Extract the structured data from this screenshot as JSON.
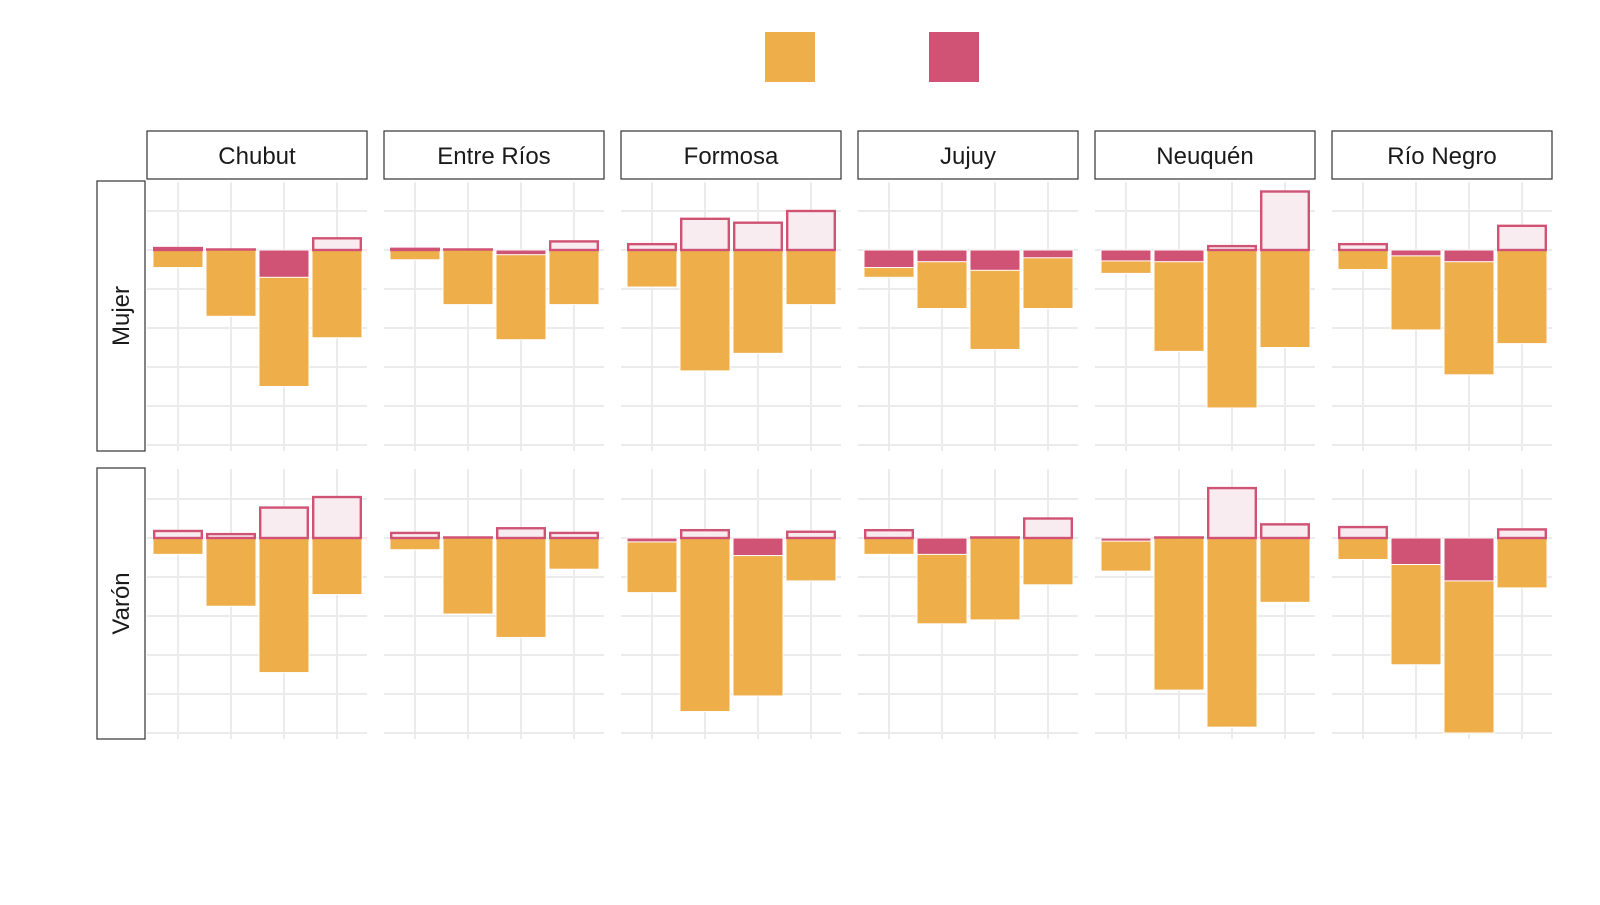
{
  "chart_data": {
    "type": "bar",
    "layout": "facet grid (rows: sexo, columns: provincia)",
    "legend": {
      "position": "top",
      "items": [
        {
          "key": "orange",
          "color": "#EEAE4A"
        },
        {
          "key": "pink",
          "color": "#D05375"
        }
      ]
    },
    "colors": {
      "orange": "#EEAE4A",
      "pink": "#D05375",
      "pink_fill_light": "#F9ECF0",
      "grid": "#EBEBEB",
      "strip_border": "#333333"
    },
    "columns": [
      "Chubut",
      "Entre Ríos",
      "Formosa",
      "Jujuy",
      "Neuquén",
      "Río Negro"
    ],
    "rows": [
      "Mujer",
      "Varón"
    ],
    "ylim": [
      -5,
      1.5
    ],
    "grid": true,
    "bars_per_panel": 4,
    "panels": [
      {
        "row": "Mujer",
        "column": "Chubut",
        "bars": [
          {
            "orange": -0.45,
            "pink_outline": 0.05
          },
          {
            "orange": -1.7,
            "pink_outline": 0.0
          },
          {
            "orange": -3.5,
            "pink_solid": -0.7
          },
          {
            "orange": -2.25,
            "pink_outline": 0.3
          }
        ]
      },
      {
        "row": "Mujer",
        "column": "Entre Ríos",
        "bars": [
          {
            "orange": -0.25,
            "pink_outline": 0.03
          },
          {
            "orange": -1.4,
            "pink_outline": 0.0
          },
          {
            "orange": -2.3,
            "pink_solid": -0.12
          },
          {
            "orange": -1.4,
            "pink_outline": 0.22
          }
        ]
      },
      {
        "row": "Mujer",
        "column": "Formosa",
        "bars": [
          {
            "orange": -0.95,
            "pink_outline": 0.15
          },
          {
            "orange": -3.1,
            "pink_outline": 0.8
          },
          {
            "orange": -2.65,
            "pink_outline": 0.7
          },
          {
            "orange": -1.4,
            "pink_outline": 1.0
          }
        ]
      },
      {
        "row": "Mujer",
        "column": "Jujuy",
        "bars": [
          {
            "orange": -0.7,
            "pink_solid": -0.45
          },
          {
            "orange": -1.5,
            "pink_solid": -0.3
          },
          {
            "orange": -2.55,
            "pink_solid": -0.52
          },
          {
            "orange": -1.5,
            "pink_solid": -0.2
          }
        ]
      },
      {
        "row": "Mujer",
        "column": "Neuquén",
        "bars": [
          {
            "orange": -0.6,
            "pink_solid": -0.28
          },
          {
            "orange": -2.6,
            "pink_solid": -0.3
          },
          {
            "orange": -4.05,
            "pink_outline": 0.1
          },
          {
            "orange": -2.5,
            "pink_outline": 1.5
          }
        ]
      },
      {
        "row": "Mujer",
        "column": "Río Negro",
        "bars": [
          {
            "orange": -0.5,
            "pink_outline": 0.15
          },
          {
            "orange": -2.05,
            "pink_solid": -0.15
          },
          {
            "orange": -3.2,
            "pink_solid": -0.3
          },
          {
            "orange": -2.4,
            "pink_outline": 0.62
          }
        ]
      },
      {
        "row": "Varón",
        "column": "Chubut",
        "bars": [
          {
            "orange": -0.42,
            "pink_outline": 0.18
          },
          {
            "orange": -1.75,
            "pink_outline": 0.1
          },
          {
            "orange": -3.45,
            "pink_outline": 0.78
          },
          {
            "orange": -1.45,
            "pink_outline": 1.05
          }
        ]
      },
      {
        "row": "Varón",
        "column": "Entre Ríos",
        "bars": [
          {
            "orange": -0.3,
            "pink_outline": 0.13
          },
          {
            "orange": -1.95,
            "pink_outline": 0.0
          },
          {
            "orange": -2.55,
            "pink_outline": 0.25
          },
          {
            "orange": -0.8,
            "pink_outline": 0.13
          }
        ]
      },
      {
        "row": "Varón",
        "column": "Formosa",
        "bars": [
          {
            "orange": -1.4,
            "pink_solid": -0.1
          },
          {
            "orange": -4.45,
            "pink_outline": 0.2
          },
          {
            "orange": -4.05,
            "pink_solid": -0.45
          },
          {
            "orange": -1.1,
            "pink_outline": 0.16
          }
        ]
      },
      {
        "row": "Varón",
        "column": "Jujuy",
        "bars": [
          {
            "orange": -0.42,
            "pink_outline": 0.2
          },
          {
            "orange": -2.2,
            "pink_solid": -0.42
          },
          {
            "orange": -2.1,
            "pink_outline": 0.0
          },
          {
            "orange": -1.2,
            "pink_outline": 0.5
          }
        ]
      },
      {
        "row": "Varón",
        "column": "Neuquén",
        "bars": [
          {
            "orange": -0.85,
            "pink_solid": -0.08
          },
          {
            "orange": -3.9,
            "pink_outline": 0.0
          },
          {
            "orange": -4.85,
            "pink_outline": 1.28
          },
          {
            "orange": -1.65,
            "pink_outline": 0.35
          }
        ]
      },
      {
        "row": "Varón",
        "column": "Río Negro",
        "bars": [
          {
            "orange": -0.55,
            "pink_outline": 0.28
          },
          {
            "orange": -3.25,
            "pink_solid": -0.68
          },
          {
            "orange": -5.0,
            "pink_solid": -1.1
          },
          {
            "orange": -1.28,
            "pink_outline": 0.22
          }
        ]
      }
    ]
  }
}
